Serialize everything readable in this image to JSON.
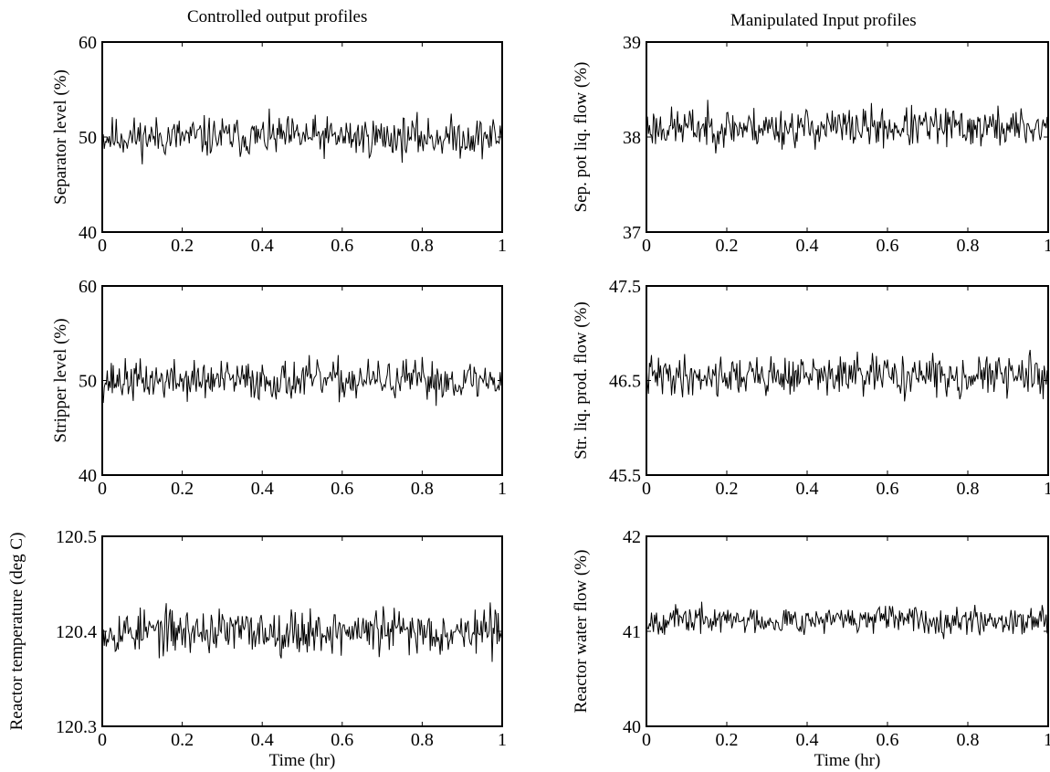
{
  "columns": [
    {
      "title": "Controlled output profiles"
    },
    {
      "title": "Manipulated Input profiles"
    }
  ],
  "chart_data": [
    {
      "type": "line",
      "title": "",
      "xlabel": "",
      "ylabel": "Separator level (%)",
      "xlim": [
        0,
        1
      ],
      "ylim": [
        40,
        60
      ],
      "x_ticks": [
        "0",
        "0.2",
        "0.4",
        "0.6",
        "0.8",
        "1"
      ],
      "y_ticks": [
        "40",
        "50",
        "60"
      ],
      "center": 50,
      "noise_amplitude": 2.2,
      "seed": 11
    },
    {
      "type": "line",
      "title": "",
      "xlabel": "",
      "ylabel": "Sep. pot liq. flow (%)",
      "xlim": [
        0,
        1
      ],
      "ylim": [
        37,
        39
      ],
      "x_ticks": [
        "0",
        "0.2",
        "0.4",
        "0.6",
        "0.8",
        "1"
      ],
      "y_ticks": [
        "37",
        "38",
        "39"
      ],
      "center": 38.1,
      "noise_amplitude": 0.22,
      "seed": 23
    },
    {
      "type": "line",
      "title": "",
      "xlabel": "",
      "ylabel": "Stripper level (%)",
      "xlim": [
        0,
        1
      ],
      "ylim": [
        40,
        60
      ],
      "x_ticks": [
        "0",
        "0.2",
        "0.4",
        "0.6",
        "0.8",
        "1"
      ],
      "y_ticks": [
        "40",
        "50",
        "60"
      ],
      "center": 50,
      "noise_amplitude": 2.2,
      "seed": 37
    },
    {
      "type": "line",
      "title": "",
      "xlabel": "",
      "ylabel": "Str. liq. prod. flow (%)",
      "xlim": [
        0,
        1
      ],
      "ylim": [
        45.5,
        47.5
      ],
      "x_ticks": [
        "0",
        "0.2",
        "0.4",
        "0.6",
        "0.8",
        "1"
      ],
      "y_ticks": [
        "45.5",
        "46.5",
        "47.5"
      ],
      "center": 46.55,
      "noise_amplitude": 0.22,
      "seed": 41
    },
    {
      "type": "line",
      "title": "",
      "xlabel": "Time (hr)",
      "ylabel": "Reactor temperature (deg C)",
      "xlim": [
        0,
        1
      ],
      "ylim": [
        120.3,
        120.5
      ],
      "x_ticks": [
        "0",
        "0.2",
        "0.4",
        "0.6",
        "0.8",
        "1"
      ],
      "y_ticks": [
        "120.3",
        "120.4",
        "120.5"
      ],
      "center": 120.4,
      "noise_amplitude": 0.025,
      "seed": 53
    },
    {
      "type": "line",
      "title": "",
      "xlabel": "Time (hr)",
      "ylabel": "Reactor water flow (%)",
      "xlim": [
        0,
        1
      ],
      "ylim": [
        40,
        42
      ],
      "x_ticks": [
        "0",
        "0.2",
        "0.4",
        "0.6",
        "0.8",
        "1"
      ],
      "y_ticks": [
        "40",
        "41",
        "42"
      ],
      "center": 41.12,
      "noise_amplitude": 0.15,
      "seed": 67
    }
  ]
}
